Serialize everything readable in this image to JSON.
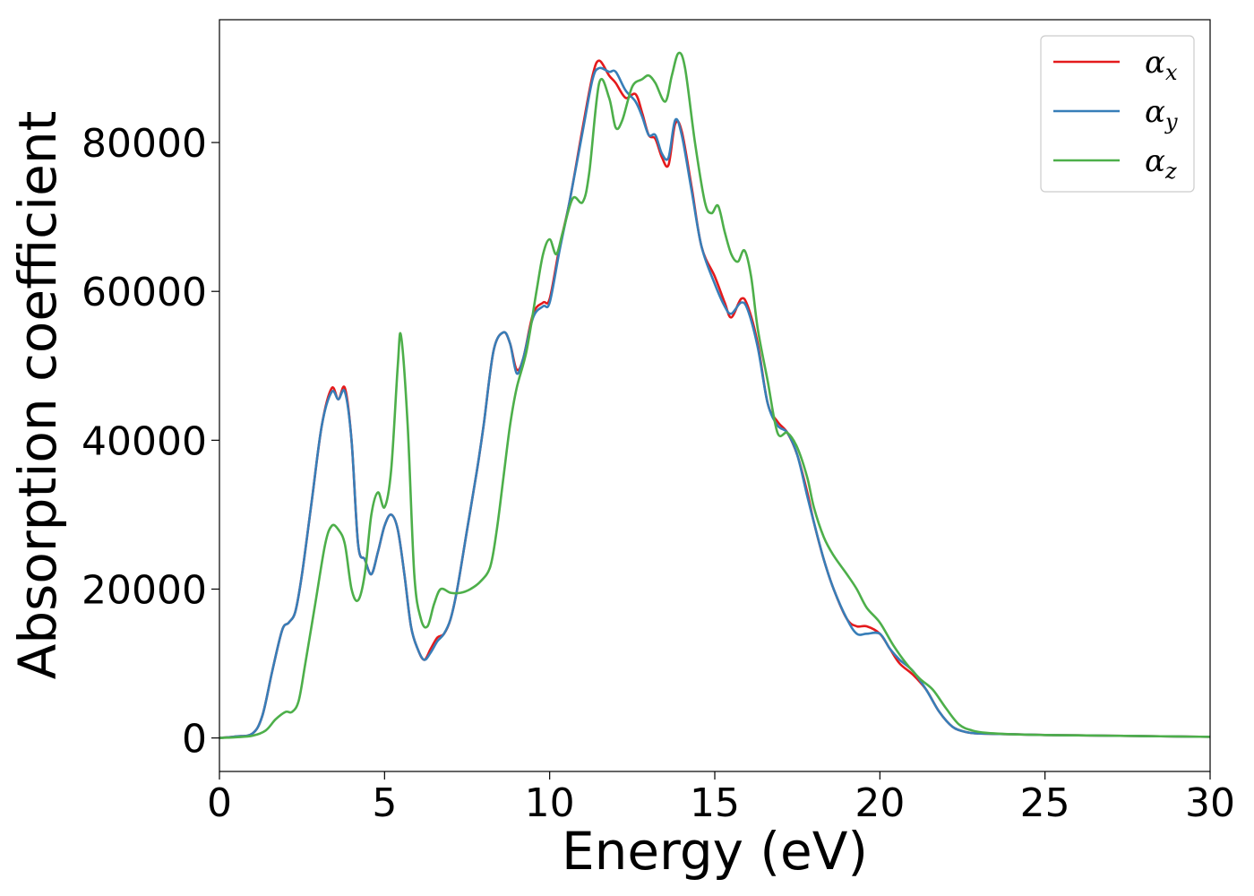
{
  "chart_data": {
    "type": "line",
    "xlabel": "Energy (eV)",
    "ylabel": "Absorption coefficient",
    "xlim": [
      0,
      30
    ],
    "ylim": [
      -4500,
      96500
    ],
    "xticks": [
      0,
      5,
      10,
      15,
      20,
      25,
      30
    ],
    "yticks": [
      0,
      20000,
      40000,
      60000,
      80000
    ],
    "grid": false,
    "legend_position": "top-right",
    "series": [
      {
        "name": "α_x",
        "legend_symbol": "α",
        "legend_subscript": "x",
        "color": "#e41a1c",
        "x": [
          0,
          0.5,
          1.0,
          1.3,
          1.6,
          1.9,
          2.1,
          2.3,
          2.5,
          2.8,
          3.1,
          3.4,
          3.6,
          3.8,
          4.0,
          4.2,
          4.4,
          4.6,
          4.8,
          5.0,
          5.2,
          5.4,
          5.6,
          5.8,
          6.0,
          6.2,
          6.4,
          6.6,
          6.8,
          7.0,
          7.2,
          7.5,
          7.8,
          8.0,
          8.3,
          8.6,
          8.8,
          9.0,
          9.2,
          9.5,
          9.8,
          10.0,
          10.3,
          10.6,
          11.0,
          11.3,
          11.5,
          11.8,
          12.0,
          12.3,
          12.6,
          12.8,
          13.0,
          13.2,
          13.4,
          13.6,
          13.8,
          14.0,
          14.3,
          14.6,
          15.0,
          15.3,
          15.5,
          15.8,
          16.0,
          16.3,
          16.6,
          16.9,
          17.2,
          17.5,
          17.8,
          18.0,
          18.3,
          18.6,
          19.0,
          19.3,
          19.6,
          20.0,
          20.3,
          20.6,
          21.0,
          21.4,
          21.8,
          22.2,
          22.6,
          23.0,
          24.0,
          25.0,
          26.0,
          27.0,
          28.0,
          29.0,
          30.0
        ],
        "y": [
          0,
          200,
          600,
          3000,
          9000,
          14500,
          15500,
          17000,
          22000,
          32000,
          42000,
          47000,
          45500,
          47000,
          40000,
          26000,
          24000,
          22000,
          25000,
          28500,
          30000,
          28000,
          22000,
          15000,
          12000,
          10500,
          12000,
          13500,
          14000,
          16000,
          20000,
          28000,
          36000,
          42000,
          52000,
          54500,
          53000,
          49500,
          51000,
          57000,
          58500,
          59000,
          66000,
          72000,
          82000,
          89000,
          91000,
          89000,
          88000,
          86000,
          86500,
          84000,
          81000,
          80500,
          78000,
          77000,
          82500,
          81500,
          74000,
          66000,
          62000,
          58500,
          56500,
          59000,
          58000,
          53000,
          45000,
          42500,
          41000,
          38000,
          33000,
          29000,
          24000,
          20000,
          16000,
          15000,
          15000,
          14000,
          12000,
          10000,
          8500,
          6500,
          3500,
          1500,
          800,
          600,
          500,
          400,
          350,
          300,
          250,
          200,
          150
        ]
      },
      {
        "name": "α_y",
        "legend_symbol": "α",
        "legend_subscript": "y",
        "color": "#377eb8",
        "x": [
          0,
          0.5,
          1.0,
          1.3,
          1.6,
          1.9,
          2.1,
          2.3,
          2.5,
          2.8,
          3.1,
          3.4,
          3.6,
          3.8,
          4.0,
          4.2,
          4.4,
          4.6,
          4.8,
          5.0,
          5.2,
          5.4,
          5.6,
          5.8,
          6.0,
          6.2,
          6.4,
          6.6,
          6.8,
          7.0,
          7.2,
          7.5,
          7.8,
          8.0,
          8.3,
          8.6,
          8.8,
          9.0,
          9.2,
          9.5,
          9.8,
          10.0,
          10.3,
          10.6,
          11.0,
          11.3,
          11.5,
          11.8,
          12.0,
          12.3,
          12.6,
          12.8,
          13.0,
          13.2,
          13.4,
          13.6,
          13.8,
          14.0,
          14.3,
          14.6,
          15.0,
          15.3,
          15.5,
          15.8,
          16.0,
          16.3,
          16.6,
          16.9,
          17.2,
          17.5,
          17.8,
          18.0,
          18.3,
          18.6,
          19.0,
          19.3,
          19.6,
          20.0,
          20.3,
          20.6,
          21.0,
          21.4,
          21.8,
          22.2,
          22.6,
          23.0,
          24.0,
          25.0,
          26.0,
          27.0,
          28.0,
          29.0,
          30.0
        ],
        "y": [
          0,
          200,
          600,
          3000,
          9000,
          14500,
          15500,
          17000,
          22000,
          32000,
          42000,
          46500,
          45500,
          46500,
          40000,
          26000,
          24000,
          22000,
          25000,
          28500,
          30000,
          28000,
          22000,
          15000,
          12000,
          10500,
          11500,
          13000,
          14000,
          16000,
          20000,
          28000,
          36000,
          42000,
          52000,
          54500,
          53000,
          49000,
          51000,
          56500,
          58000,
          58500,
          65500,
          72000,
          81500,
          88500,
          90000,
          89500,
          89500,
          87000,
          85500,
          83500,
          81000,
          81000,
          78500,
          78000,
          83000,
          81000,
          73500,
          66000,
          61000,
          58000,
          57000,
          58500,
          57500,
          52500,
          45000,
          42000,
          41000,
          38000,
          32500,
          29000,
          24000,
          20000,
          16000,
          14000,
          14000,
          14000,
          12000,
          10500,
          9000,
          6500,
          3500,
          1500,
          800,
          600,
          500,
          400,
          350,
          300,
          250,
          200,
          150
        ]
      },
      {
        "name": "α_z",
        "legend_symbol": "α",
        "legend_subscript": "z",
        "color": "#4daf4a",
        "x": [
          0,
          0.5,
          1.0,
          1.4,
          1.7,
          2.0,
          2.2,
          2.4,
          2.6,
          2.9,
          3.2,
          3.4,
          3.6,
          3.8,
          4.0,
          4.2,
          4.4,
          4.6,
          4.8,
          5.0,
          5.2,
          5.4,
          5.5,
          5.7,
          5.9,
          6.1,
          6.3,
          6.5,
          6.7,
          7.0,
          7.3,
          7.6,
          7.9,
          8.2,
          8.4,
          8.6,
          8.8,
          9.0,
          9.3,
          9.6,
          9.8,
          10.0,
          10.2,
          10.4,
          10.7,
          11.0,
          11.2,
          11.5,
          11.8,
          12.0,
          12.2,
          12.5,
          12.8,
          13.0,
          13.2,
          13.5,
          13.7,
          13.9,
          14.1,
          14.4,
          14.7,
          14.9,
          15.1,
          15.3,
          15.5,
          15.7,
          15.9,
          16.1,
          16.3,
          16.6,
          16.9,
          17.2,
          17.5,
          17.8,
          18.0,
          18.3,
          18.6,
          19.0,
          19.3,
          19.6,
          20.0,
          20.4,
          20.8,
          21.2,
          21.6,
          22.0,
          22.4,
          22.8,
          23.2,
          24.0,
          25.0,
          26.0,
          27.0,
          28.0,
          29.0,
          30.0
        ],
        "y": [
          0,
          100,
          300,
          1000,
          2500,
          3500,
          3500,
          5000,
          10000,
          18000,
          26000,
          28500,
          28000,
          26000,
          20000,
          18500,
          22000,
          30000,
          33000,
          31000,
          36000,
          50000,
          54000,
          42000,
          22000,
          16000,
          15000,
          18000,
          20000,
          19500,
          19500,
          20000,
          21000,
          23000,
          28000,
          35000,
          42000,
          47000,
          52000,
          60000,
          65000,
          67000,
          65000,
          68000,
          72500,
          72000,
          76000,
          88000,
          86000,
          82000,
          83000,
          87500,
          88500,
          89000,
          88000,
          85500,
          89000,
          92000,
          90000,
          80000,
          72000,
          70500,
          71500,
          68000,
          65000,
          64000,
          65500,
          62000,
          55000,
          48000,
          41000,
          41000,
          39000,
          35000,
          31000,
          27000,
          24500,
          22000,
          20000,
          17500,
          15500,
          12500,
          10000,
          8000,
          6500,
          4000,
          1800,
          1000,
          700,
          500,
          400,
          350,
          300,
          250,
          200,
          150
        ]
      }
    ]
  }
}
